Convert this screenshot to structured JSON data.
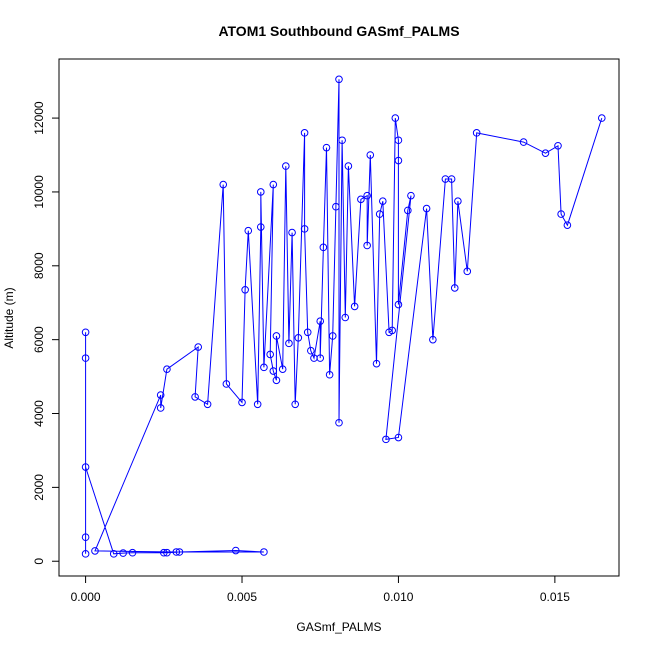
{
  "chart_data": {
    "type": "scatter",
    "title": "ATOM1 Southbound GASmf_PALMS",
    "xlabel": "GASmf_PALMS",
    "ylabel": "Altitude (m)",
    "xlim": [
      -0.00085,
      0.01705
    ],
    "ylim": [
      -400,
      13600
    ],
    "xticks": [
      0.0,
      0.005,
      0.01,
      0.015
    ],
    "xtick_labels": [
      "0.000",
      "0.005",
      "0.010",
      "0.015"
    ],
    "yticks": [
      0,
      2000,
      4000,
      6000,
      8000,
      10000,
      12000
    ],
    "ytick_labels": [
      "0",
      "2000",
      "4000",
      "6000",
      "8000",
      "10000",
      "12000"
    ],
    "grid": false,
    "color": "#0000ff",
    "series": [
      {
        "points": [
          [
            0.0,
            200
          ],
          [
            0.0,
            6200
          ],
          [
            0.0,
            5500
          ],
          [
            0.0,
            650
          ],
          [
            0.0,
            2550
          ],
          [
            0.0009,
            200
          ],
          [
            0.0012,
            220
          ],
          [
            0.0015,
            230
          ],
          [
            0.0025,
            230
          ],
          [
            0.0026,
            230
          ],
          [
            0.003,
            250
          ],
          [
            0.0048,
            290
          ],
          [
            0.0057,
            250
          ],
          [
            0.0029,
            250
          ],
          [
            0.0003,
            280
          ],
          [
            0.0024,
            4500
          ],
          [
            0.0024,
            4150
          ],
          [
            0.0026,
            5200
          ],
          [
            0.0036,
            5800
          ],
          [
            0.0035,
            4450
          ],
          [
            0.0039,
            4250
          ],
          [
            0.0044,
            10200
          ],
          [
            0.0045,
            4800
          ],
          [
            0.005,
            4300
          ],
          [
            0.0051,
            7350
          ],
          [
            0.0052,
            8950
          ],
          [
            0.0055,
            4250
          ],
          [
            0.0056,
            9050
          ],
          [
            0.0056,
            10000
          ],
          [
            0.0057,
            5250
          ],
          [
            0.006,
            10200
          ],
          [
            0.0059,
            5600
          ],
          [
            0.006,
            5150
          ],
          [
            0.0061,
            4900
          ],
          [
            0.0061,
            6100
          ],
          [
            0.0063,
            5200
          ],
          [
            0.0064,
            10700
          ],
          [
            0.0065,
            5900
          ],
          [
            0.0066,
            8900
          ],
          [
            0.0067,
            4250
          ],
          [
            0.0068,
            6050
          ],
          [
            0.007,
            11600
          ],
          [
            0.007,
            9000
          ],
          [
            0.0071,
            6200
          ],
          [
            0.0072,
            5700
          ],
          [
            0.0073,
            5500
          ],
          [
            0.0075,
            6500
          ],
          [
            0.0075,
            5500
          ],
          [
            0.0076,
            8500
          ],
          [
            0.0077,
            11200
          ],
          [
            0.0078,
            5050
          ],
          [
            0.0079,
            6100
          ],
          [
            0.008,
            9600
          ],
          [
            0.0081,
            13050
          ],
          [
            0.0081,
            3750
          ],
          [
            0.0082,
            11400
          ],
          [
            0.0083,
            6600
          ],
          [
            0.0084,
            10700
          ],
          [
            0.0086,
            6900
          ],
          [
            0.0088,
            9800
          ],
          [
            0.009,
            9900
          ],
          [
            0.009,
            8550
          ],
          [
            0.0091,
            11000
          ],
          [
            0.0093,
            5350
          ],
          [
            0.0094,
            9400
          ],
          [
            0.0095,
            9750
          ],
          [
            0.0097,
            6200
          ],
          [
            0.0098,
            6250
          ],
          [
            0.0099,
            12000
          ],
          [
            0.01,
            11400
          ],
          [
            0.01,
            10850
          ],
          [
            0.01,
            6950
          ],
          [
            0.0103,
            9500
          ],
          [
            0.0104,
            9900
          ],
          [
            0.0096,
            3300
          ],
          [
            0.01,
            3350
          ],
          [
            0.0109,
            9550
          ],
          [
            0.0111,
            6000
          ],
          [
            0.0115,
            10350
          ],
          [
            0.0117,
            10350
          ],
          [
            0.0118,
            7400
          ],
          [
            0.0119,
            9750
          ],
          [
            0.0122,
            7850
          ],
          [
            0.0125,
            11600
          ],
          [
            0.014,
            11350
          ],
          [
            0.0147,
            11050
          ],
          [
            0.0151,
            11250
          ],
          [
            0.0152,
            9400
          ],
          [
            0.0154,
            9100
          ],
          [
            0.0165,
            12000
          ]
        ]
      }
    ]
  }
}
